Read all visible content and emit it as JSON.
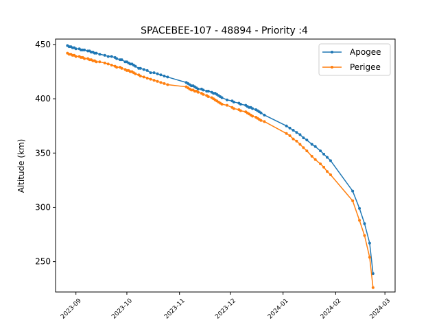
{
  "chart_data": {
    "type": "line",
    "title": "SPACEBEE-107 - 48894 - Priority :4",
    "xlabel": "",
    "ylabel": "Altitude (km)",
    "x_tick_labels": [
      "2023-09",
      "2023-10",
      "2023-11",
      "2023-12",
      "2024-01",
      "2024-02",
      "2024-03"
    ],
    "x_ticks": [
      "2023-09-01",
      "2023-10-01",
      "2023-11-01",
      "2023-12-01",
      "2024-01-01",
      "2024-02-01",
      "2024-03-01"
    ],
    "y_ticks": [
      250,
      300,
      350,
      400,
      450
    ],
    "xlim": [
      "2023-08-20",
      "2024-03-07"
    ],
    "ylim": [
      222,
      455
    ],
    "grid": false,
    "legend_position": "top-right",
    "colors": {
      "Apogee": "#1f77b4",
      "Perigee": "#ff7f0e"
    },
    "series": [
      {
        "name": "Apogee",
        "x": [
          "2023-08-27",
          "2023-08-28",
          "2023-08-29",
          "2023-08-30",
          "2023-08-31",
          "2023-09-01",
          "2023-09-03",
          "2023-09-04",
          "2023-09-05",
          "2023-09-06",
          "2023-09-08",
          "2023-09-09",
          "2023-09-10",
          "2023-09-11",
          "2023-09-12",
          "2023-09-13",
          "2023-09-15",
          "2023-09-18",
          "2023-09-20",
          "2023-09-22",
          "2023-09-24",
          "2023-09-25",
          "2023-09-27",
          "2023-09-28",
          "2023-09-30",
          "2023-10-01",
          "2023-10-02",
          "2023-10-03",
          "2023-10-04",
          "2023-10-05",
          "2023-10-06",
          "2023-10-08",
          "2023-10-09",
          "2023-10-11",
          "2023-10-13",
          "2023-10-15",
          "2023-10-17",
          "2023-10-19",
          "2023-10-21",
          "2023-10-23",
          "2023-10-25",
          "2023-11-05",
          "2023-11-06",
          "2023-11-07",
          "2023-11-08",
          "2023-11-09",
          "2023-11-10",
          "2023-11-11",
          "2023-11-12",
          "2023-11-14",
          "2023-11-15",
          "2023-11-17",
          "2023-11-18",
          "2023-11-20",
          "2023-11-21",
          "2023-11-22",
          "2023-11-23",
          "2023-11-24",
          "2023-11-25",
          "2023-11-26",
          "2023-11-29",
          "2023-12-02",
          "2023-12-03",
          "2023-12-06",
          "2023-12-07",
          "2023-12-10",
          "2023-12-11",
          "2023-12-12",
          "2023-12-13",
          "2023-12-14",
          "2023-12-16",
          "2023-12-17",
          "2023-12-18",
          "2023-12-19",
          "2023-12-21",
          "2024-01-03",
          "2024-01-05",
          "2024-01-07",
          "2024-01-09",
          "2024-01-11",
          "2024-01-13",
          "2024-01-15",
          "2024-01-18",
          "2024-01-20",
          "2024-01-23",
          "2024-01-25",
          "2024-01-27",
          "2024-01-29",
          "2024-02-11",
          "2024-02-15",
          "2024-02-18",
          "2024-02-21",
          "2024-02-23"
        ],
        "y": [
          449,
          448,
          448,
          447,
          447,
          446,
          446,
          445,
          445,
          445,
          444,
          444,
          443,
          443,
          442,
          442,
          441,
          440,
          439,
          439,
          438,
          437,
          436,
          436,
          434,
          434,
          433,
          432,
          432,
          431,
          430,
          428,
          428,
          427,
          426,
          424,
          424,
          423,
          422,
          421,
          420,
          415,
          414,
          413,
          412,
          412,
          411,
          410,
          409,
          409,
          408,
          407,
          407,
          406,
          405,
          405,
          404,
          403,
          402,
          401,
          399,
          398,
          397,
          396,
          395,
          394,
          393,
          392,
          392,
          391,
          390,
          389,
          388,
          387,
          385,
          375,
          373,
          371,
          369,
          367,
          364,
          362,
          358,
          356,
          352,
          349,
          346,
          343,
          315,
          299,
          285,
          267,
          239
        ]
      },
      {
        "name": "Perigee",
        "x": [
          "2023-08-27",
          "2023-08-28",
          "2023-08-29",
          "2023-08-30",
          "2023-08-31",
          "2023-09-01",
          "2023-09-03",
          "2023-09-04",
          "2023-09-05",
          "2023-09-06",
          "2023-09-08",
          "2023-09-09",
          "2023-09-10",
          "2023-09-11",
          "2023-09-12",
          "2023-09-13",
          "2023-09-15",
          "2023-09-18",
          "2023-09-20",
          "2023-09-22",
          "2023-09-24",
          "2023-09-25",
          "2023-09-27",
          "2023-09-28",
          "2023-09-30",
          "2023-10-01",
          "2023-10-02",
          "2023-10-03",
          "2023-10-04",
          "2023-10-05",
          "2023-10-06",
          "2023-10-08",
          "2023-10-09",
          "2023-10-11",
          "2023-10-13",
          "2023-10-15",
          "2023-10-17",
          "2023-10-19",
          "2023-10-21",
          "2023-10-23",
          "2023-10-25",
          "2023-11-05",
          "2023-11-06",
          "2023-11-07",
          "2023-11-08",
          "2023-11-09",
          "2023-11-10",
          "2023-11-11",
          "2023-11-12",
          "2023-11-14",
          "2023-11-15",
          "2023-11-17",
          "2023-11-18",
          "2023-11-20",
          "2023-11-21",
          "2023-11-22",
          "2023-11-23",
          "2023-11-24",
          "2023-11-25",
          "2023-11-26",
          "2023-11-29",
          "2023-12-02",
          "2023-12-03",
          "2023-12-06",
          "2023-12-07",
          "2023-12-10",
          "2023-12-11",
          "2023-12-12",
          "2023-12-13",
          "2023-12-14",
          "2023-12-16",
          "2023-12-17",
          "2023-12-18",
          "2023-12-19",
          "2023-12-21",
          "2024-01-03",
          "2024-01-05",
          "2024-01-07",
          "2024-01-09",
          "2024-01-11",
          "2024-01-13",
          "2024-01-15",
          "2024-01-18",
          "2024-01-20",
          "2024-01-23",
          "2024-01-25",
          "2024-01-27",
          "2024-01-29",
          "2024-02-11",
          "2024-02-15",
          "2024-02-18",
          "2024-02-21",
          "2024-02-23"
        ],
        "y": [
          442,
          441,
          441,
          440,
          440,
          439,
          439,
          438,
          438,
          437,
          437,
          436,
          436,
          435,
          435,
          434,
          434,
          433,
          432,
          431,
          430,
          429,
          429,
          428,
          427,
          426,
          426,
          425,
          425,
          424,
          423,
          422,
          421,
          420,
          419,
          418,
          417,
          416,
          415,
          414,
          413,
          411,
          410,
          409,
          408,
          408,
          407,
          407,
          406,
          405,
          404,
          403,
          402,
          401,
          400,
          399,
          398,
          397,
          396,
          395,
          394,
          392,
          391,
          390,
          389,
          388,
          387,
          386,
          385,
          384,
          383,
          382,
          381,
          380,
          379,
          368,
          366,
          363,
          361,
          358,
          355,
          352,
          347,
          344,
          340,
          337,
          333,
          330,
          306,
          288,
          274,
          254,
          226
        ]
      }
    ]
  }
}
